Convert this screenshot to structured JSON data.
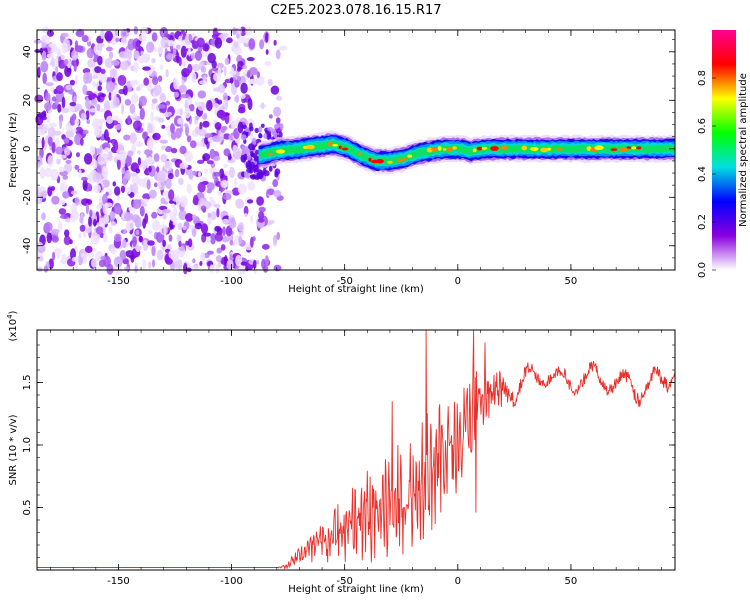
{
  "chart_data": [
    {
      "type": "heatmap",
      "title": "C2E5.2023.078.16.15.R17",
      "xlabel": "Height of straight line (km)",
      "ylabel": "Frequency (Hz)",
      "xlim": [
        -186,
        96
      ],
      "ylim": [
        -50,
        49
      ],
      "xticks": [
        -150,
        -100,
        -50,
        0,
        50
      ],
      "yticks": [
        -40,
        -20,
        0,
        20,
        40
      ],
      "colorbar_label": "Normalized spectral amplitude",
      "colorbar_range": [
        0,
        1
      ],
      "colorbar_ticks": [
        "0.0",
        "0.2",
        "0.4",
        "0.6",
        "0.8"
      ],
      "colormap": [
        "#ffffff",
        "#8a00e0",
        "#0000ff",
        "#00e0e0",
        "#00ff00",
        "#ffff00",
        "#ff0000",
        "#ff0090"
      ],
      "noise_region_x": [
        -186,
        -76
      ],
      "signal_band_centre": {
        "x": [
          -88,
          -80,
          -70,
          -62,
          -55,
          -48,
          -42,
          -36,
          -30,
          -24,
          -18,
          -12,
          -6,
          0,
          6,
          12,
          20,
          30,
          40,
          60,
          80,
          96
        ],
        "frequency": [
          -3,
          -1,
          0,
          1,
          2,
          0,
          -3,
          -5,
          -5,
          -4,
          -2,
          -1,
          0,
          0,
          -1,
          0,
          0,
          0,
          0,
          0,
          0,
          0
        ]
      },
      "signal_band_halfwidth_hz": 3
    },
    {
      "type": "line",
      "xlabel": "Height of straight line (km)",
      "ylabel": "SNR (10 * v/v)",
      "scale_prefix": "(x10",
      "scale_exponent": "4",
      "scale_suffix": ")",
      "xlim": [
        -186,
        96
      ],
      "ylim": [
        0,
        1.92
      ],
      "xticks": [
        -150,
        -100,
        -50,
        0,
        50
      ],
      "yticks": [
        0.5,
        1.0,
        1.5
      ],
      "ytick_labels": [
        "0.5",
        "1.0",
        "1.5"
      ],
      "line_color": "#e8302a",
      "series": [
        {
          "values_envelope": {
            "x": [
              -186,
              -80,
              -76,
              -70,
              -60,
              -50,
              -40,
              -30,
              -20,
              -15,
              -10,
              -5,
              0,
              5,
              7,
              10,
              15,
              20,
              30,
              40,
              45,
              50,
              60,
              70,
              80,
              90,
              96
            ],
            "mean": [
              0.02,
              0.02,
              0.03,
              0.12,
              0.22,
              0.32,
              0.42,
              0.5,
              0.6,
              0.8,
              0.85,
              0.95,
              1.0,
              1.2,
              1.3,
              1.35,
              1.4,
              1.45,
              1.5,
              1.58,
              1.52,
              1.5,
              1.55,
              1.5,
              1.45,
              1.5,
              1.6
            ],
            "noise_amp": [
              0.0,
              0.0,
              0.02,
              0.06,
              0.15,
              0.25,
              0.3,
              0.33,
              0.35,
              0.4,
              0.4,
              0.35,
              0.3,
              0.3,
              0.35,
              0.25,
              0.15,
              0.12,
              0.1,
              0.08,
              0.08,
              0.08,
              0.08,
              0.08,
              0.1,
              0.1,
              0.08
            ]
          },
          "spikes": [
            {
              "x": -14,
              "y": 1.92
            },
            {
              "x": 7,
              "y": 1.92
            },
            {
              "x": 12,
              "y": 1.82
            },
            {
              "x": -29,
              "y": 1.35
            },
            {
              "x": 8,
              "y": 0.46
            }
          ]
        }
      ]
    }
  ]
}
